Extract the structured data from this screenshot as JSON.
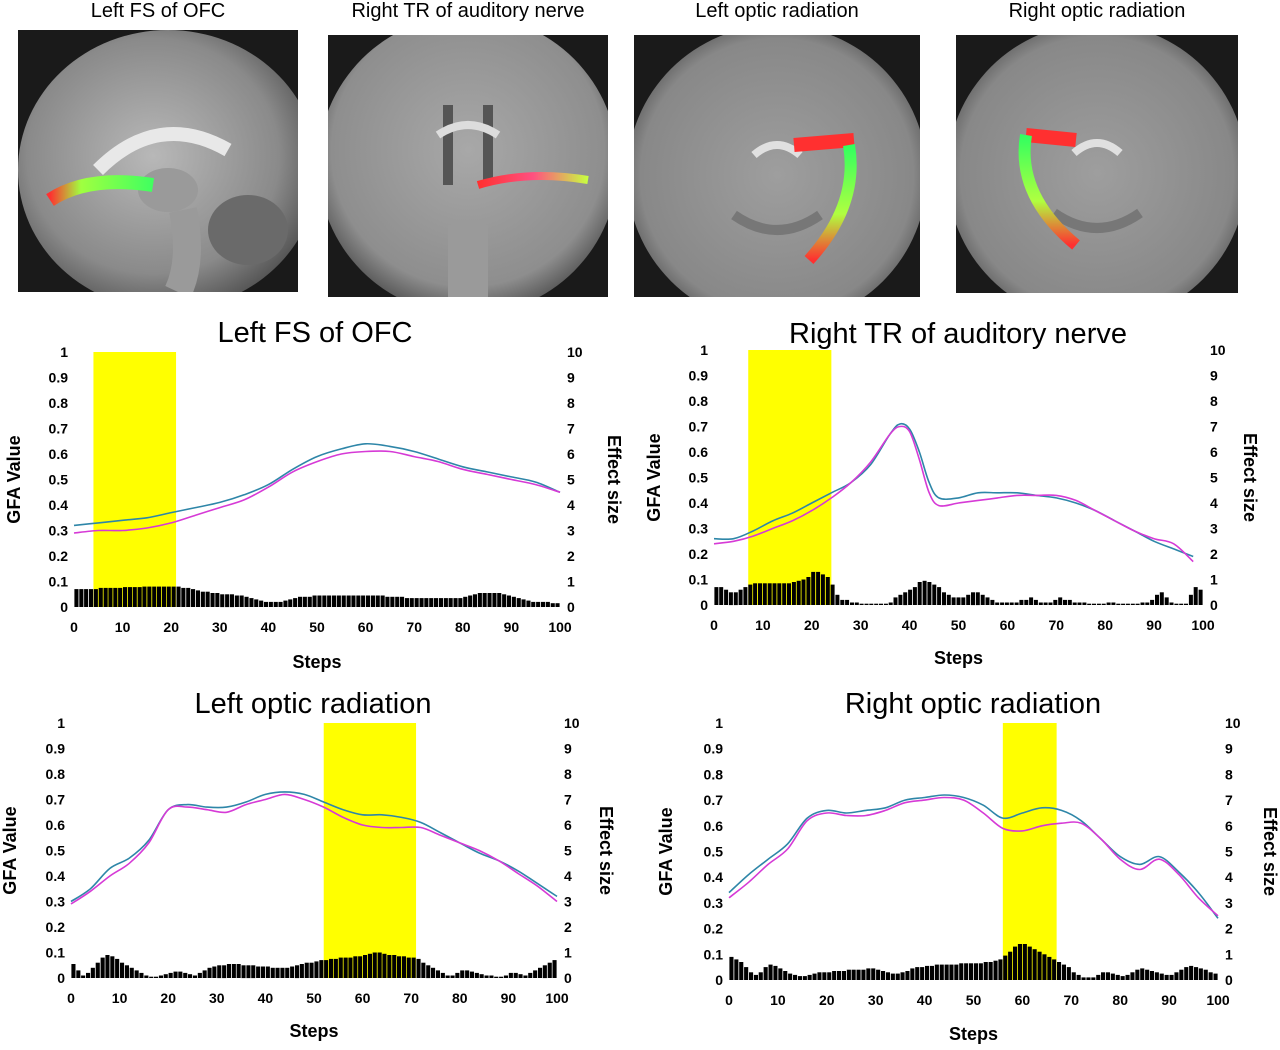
{
  "brain_images": [
    {
      "title": "Left FS of OFC"
    },
    {
      "title": "Right TR of auditory nerve"
    },
    {
      "title": "Left optic radiation"
    },
    {
      "title": "Right optic radiation"
    }
  ],
  "colors": {
    "highlight": "#ffff00",
    "line1": "#2e86a8",
    "line2": "#d63ad6",
    "bars": "#000000"
  },
  "chart_data": [
    {
      "type": "line",
      "title": "Left FS of OFC",
      "xlabel": "Steps",
      "ylabel": "GFA Value",
      "y2label": "Effect size",
      "xlim": [
        0,
        100
      ],
      "ylim": [
        0,
        1
      ],
      "y2lim": [
        0,
        10
      ],
      "xticks": [
        "0",
        "10",
        "20",
        "30",
        "40",
        "50",
        "60",
        "70",
        "80",
        "90",
        "100"
      ],
      "yticks": [
        "0",
        "0.1",
        "0.2",
        "0.3",
        "0.4",
        "0.5",
        "0.6",
        "0.7",
        "0.8",
        "0.9",
        "1"
      ],
      "y2ticks": [
        "0",
        "1",
        "2",
        "3",
        "4",
        "5",
        "6",
        "7",
        "8",
        "9",
        "10"
      ],
      "highlight": [
        4,
        21
      ],
      "series": [
        {
          "x": [
            0,
            5,
            10,
            15,
            20,
            25,
            30,
            35,
            40,
            45,
            50,
            55,
            60,
            65,
            70,
            75,
            80,
            85,
            90,
            95,
            100
          ],
          "values": [
            0.32,
            0.33,
            0.34,
            0.35,
            0.37,
            0.39,
            0.41,
            0.44,
            0.48,
            0.54,
            0.59,
            0.62,
            0.64,
            0.63,
            0.61,
            0.58,
            0.55,
            0.53,
            0.51,
            0.49,
            0.45
          ]
        },
        {
          "x": [
            0,
            5,
            10,
            15,
            20,
            25,
            30,
            35,
            40,
            45,
            50,
            55,
            60,
            65,
            70,
            75,
            80,
            85,
            90,
            95,
            100
          ],
          "values": [
            0.29,
            0.3,
            0.3,
            0.31,
            0.33,
            0.36,
            0.39,
            0.42,
            0.47,
            0.53,
            0.57,
            0.6,
            0.61,
            0.61,
            0.59,
            0.57,
            0.54,
            0.52,
            0.5,
            0.48,
            0.45
          ]
        }
      ],
      "effect_size": [
        0.7,
        0.7,
        0.7,
        0.7,
        0.7,
        0.75,
        0.75,
        0.75,
        0.75,
        0.75,
        0.78,
        0.78,
        0.78,
        0.78,
        0.8,
        0.8,
        0.8,
        0.8,
        0.8,
        0.8,
        0.8,
        0.8,
        0.75,
        0.75,
        0.7,
        0.65,
        0.6,
        0.6,
        0.55,
        0.55,
        0.5,
        0.5,
        0.5,
        0.45,
        0.45,
        0.4,
        0.35,
        0.3,
        0.25,
        0.2,
        0.2,
        0.2,
        0.2,
        0.25,
        0.3,
        0.35,
        0.4,
        0.4,
        0.4,
        0.45,
        0.45,
        0.45,
        0.45,
        0.45,
        0.45,
        0.45,
        0.45,
        0.45,
        0.45,
        0.45,
        0.45,
        0.45,
        0.45,
        0.45,
        0.4,
        0.4,
        0.4,
        0.4,
        0.35,
        0.35,
        0.35,
        0.35,
        0.35,
        0.35,
        0.35,
        0.35,
        0.35,
        0.35,
        0.35,
        0.35,
        0.4,
        0.45,
        0.5,
        0.55,
        0.55,
        0.55,
        0.55,
        0.55,
        0.5,
        0.45,
        0.4,
        0.35,
        0.3,
        0.25,
        0.2,
        0.2,
        0.2,
        0.2,
        0.15,
        0.15
      ]
    },
    {
      "type": "line",
      "title": "Right TR of auditory nerve",
      "xlabel": "Steps",
      "ylabel": "GFA Value",
      "y2label": "Effect size",
      "xlim": [
        0,
        100
      ],
      "ylim": [
        0,
        1
      ],
      "y2lim": [
        0,
        10
      ],
      "xticks": [
        "0",
        "10",
        "20",
        "30",
        "40",
        "50",
        "60",
        "70",
        "80",
        "90",
        "100"
      ],
      "yticks": [
        "0",
        "0.1",
        "0.2",
        "0.3",
        "0.4",
        "0.5",
        "0.6",
        "0.7",
        "0.8",
        "0.9",
        "1"
      ],
      "y2ticks": [
        "0",
        "1",
        "2",
        "3",
        "4",
        "5",
        "6",
        "7",
        "8",
        "9",
        "10"
      ],
      "highlight": [
        7,
        24
      ],
      "series": [
        {
          "x": [
            0,
            4,
            8,
            12,
            16,
            20,
            24,
            28,
            32,
            36,
            38,
            40,
            42,
            44,
            46,
            50,
            54,
            58,
            62,
            66,
            70,
            74,
            78,
            82,
            86,
            90,
            94,
            98
          ],
          "values": [
            0.26,
            0.26,
            0.29,
            0.33,
            0.36,
            0.4,
            0.44,
            0.48,
            0.55,
            0.67,
            0.71,
            0.69,
            0.6,
            0.48,
            0.42,
            0.42,
            0.44,
            0.44,
            0.44,
            0.43,
            0.42,
            0.4,
            0.37,
            0.33,
            0.29,
            0.25,
            0.22,
            0.19
          ]
        },
        {
          "x": [
            0,
            4,
            8,
            12,
            16,
            20,
            24,
            28,
            32,
            36,
            38,
            40,
            42,
            44,
            46,
            50,
            54,
            58,
            62,
            66,
            70,
            74,
            78,
            82,
            86,
            90,
            94,
            98
          ],
          "values": [
            0.24,
            0.25,
            0.27,
            0.3,
            0.33,
            0.37,
            0.42,
            0.48,
            0.56,
            0.67,
            0.7,
            0.68,
            0.57,
            0.44,
            0.39,
            0.4,
            0.41,
            0.42,
            0.43,
            0.43,
            0.43,
            0.41,
            0.37,
            0.33,
            0.29,
            0.26,
            0.24,
            0.17
          ]
        }
      ],
      "effect_size": [
        0.7,
        0.7,
        0.6,
        0.5,
        0.5,
        0.6,
        0.7,
        0.8,
        0.85,
        0.85,
        0.85,
        0.85,
        0.85,
        0.85,
        0.85,
        0.85,
        0.9,
        0.95,
        1.0,
        1.1,
        1.3,
        1.3,
        1.2,
        1.1,
        0.8,
        0.4,
        0.2,
        0.2,
        0.1,
        0.1,
        0.05,
        0.05,
        0.05,
        0.05,
        0.05,
        0.05,
        0.1,
        0.3,
        0.4,
        0.5,
        0.6,
        0.7,
        0.9,
        0.95,
        0.9,
        0.8,
        0.7,
        0.5,
        0.4,
        0.3,
        0.3,
        0.3,
        0.4,
        0.5,
        0.5,
        0.4,
        0.3,
        0.2,
        0.1,
        0.1,
        0.1,
        0.1,
        0.1,
        0.2,
        0.2,
        0.3,
        0.2,
        0.1,
        0.1,
        0.1,
        0.2,
        0.3,
        0.2,
        0.2,
        0.1,
        0.1,
        0.1,
        0.05,
        0.05,
        0.05,
        0.05,
        0.1,
        0.1,
        0.05,
        0.05,
        0.05,
        0.05,
        0.05,
        0.1,
        0.1,
        0.2,
        0.4,
        0.5,
        0.3,
        0.1,
        0.05,
        0.05,
        0.05,
        0.4,
        0.7,
        0.6
      ]
    },
    {
      "type": "line",
      "title": "Left optic radiation",
      "xlabel": "Steps",
      "ylabel": "GFA Value",
      "y2label": "Effect size",
      "xlim": [
        0,
        100
      ],
      "ylim": [
        0,
        1
      ],
      "y2lim": [
        0,
        10
      ],
      "xticks": [
        "0",
        "10",
        "20",
        "30",
        "40",
        "50",
        "60",
        "70",
        "80",
        "90",
        "100"
      ],
      "yticks": [
        "0",
        "0.1",
        "0.2",
        "0.3",
        "0.4",
        "0.5",
        "0.6",
        "0.7",
        "0.8",
        "0.9",
        "1"
      ],
      "y2ticks": [
        "0",
        "1",
        "2",
        "3",
        "4",
        "5",
        "6",
        "7",
        "8",
        "9",
        "10"
      ],
      "highlight": [
        52,
        71
      ],
      "series": [
        {
          "x": [
            0,
            4,
            8,
            12,
            16,
            20,
            24,
            28,
            32,
            36,
            40,
            44,
            48,
            52,
            56,
            60,
            64,
            68,
            72,
            76,
            80,
            84,
            88,
            92,
            96,
            100
          ],
          "values": [
            0.3,
            0.35,
            0.43,
            0.47,
            0.54,
            0.66,
            0.68,
            0.67,
            0.67,
            0.69,
            0.72,
            0.73,
            0.72,
            0.69,
            0.66,
            0.64,
            0.64,
            0.63,
            0.61,
            0.57,
            0.53,
            0.49,
            0.46,
            0.42,
            0.37,
            0.32
          ]
        },
        {
          "x": [
            0,
            4,
            8,
            12,
            16,
            20,
            24,
            28,
            32,
            36,
            40,
            44,
            48,
            52,
            56,
            60,
            64,
            68,
            72,
            76,
            80,
            84,
            88,
            92,
            96,
            100
          ],
          "values": [
            0.29,
            0.34,
            0.4,
            0.45,
            0.53,
            0.66,
            0.67,
            0.66,
            0.65,
            0.68,
            0.7,
            0.72,
            0.7,
            0.67,
            0.63,
            0.6,
            0.59,
            0.59,
            0.59,
            0.56,
            0.53,
            0.5,
            0.46,
            0.41,
            0.36,
            0.3
          ]
        }
      ],
      "effect_size": [
        0.55,
        0.3,
        0.1,
        0.2,
        0.4,
        0.6,
        0.8,
        0.9,
        0.85,
        0.75,
        0.6,
        0.5,
        0.4,
        0.3,
        0.2,
        0.1,
        0.05,
        0.05,
        0.1,
        0.15,
        0.2,
        0.25,
        0.25,
        0.2,
        0.15,
        0.1,
        0.2,
        0.3,
        0.4,
        0.45,
        0.5,
        0.5,
        0.55,
        0.55,
        0.55,
        0.5,
        0.5,
        0.5,
        0.45,
        0.45,
        0.45,
        0.4,
        0.4,
        0.4,
        0.4,
        0.45,
        0.5,
        0.55,
        0.6,
        0.6,
        0.65,
        0.7,
        0.7,
        0.75,
        0.75,
        0.8,
        0.8,
        0.8,
        0.85,
        0.85,
        0.9,
        0.95,
        1.0,
        1.0,
        0.95,
        0.9,
        0.9,
        0.85,
        0.85,
        0.8,
        0.8,
        0.75,
        0.6,
        0.5,
        0.4,
        0.3,
        0.2,
        0.1,
        0.1,
        0.2,
        0.3,
        0.3,
        0.25,
        0.2,
        0.15,
        0.1,
        0.1,
        0.05,
        0.05,
        0.1,
        0.2,
        0.2,
        0.15,
        0.1,
        0.2,
        0.3,
        0.4,
        0.5,
        0.6,
        0.7
      ]
    },
    {
      "type": "line",
      "title": "Right optic radiation",
      "xlabel": "Steps",
      "ylabel": "GFA Value",
      "y2label": "Effect size",
      "xlim": [
        0,
        100
      ],
      "ylim": [
        0,
        1
      ],
      "y2lim": [
        0,
        10
      ],
      "xticks": [
        "0",
        "10",
        "20",
        "30",
        "40",
        "50",
        "60",
        "70",
        "80",
        "90",
        "100"
      ],
      "yticks": [
        "0",
        "0.1",
        "0.2",
        "0.3",
        "0.4",
        "0.5",
        "0.6",
        "0.7",
        "0.8",
        "0.9",
        "1"
      ],
      "y2ticks": [
        "0",
        "1",
        "2",
        "3",
        "4",
        "5",
        "6",
        "7",
        "8",
        "9",
        "10"
      ],
      "highlight": [
        56,
        67
      ],
      "series": [
        {
          "x": [
            0,
            4,
            8,
            12,
            16,
            20,
            24,
            28,
            32,
            36,
            40,
            44,
            48,
            52,
            56,
            60,
            64,
            68,
            72,
            76,
            80,
            84,
            88,
            92,
            96,
            100
          ],
          "values": [
            0.34,
            0.41,
            0.47,
            0.53,
            0.63,
            0.66,
            0.65,
            0.66,
            0.67,
            0.7,
            0.71,
            0.72,
            0.71,
            0.68,
            0.63,
            0.65,
            0.67,
            0.66,
            0.62,
            0.55,
            0.48,
            0.45,
            0.48,
            0.42,
            0.34,
            0.24
          ]
        },
        {
          "x": [
            0,
            4,
            8,
            12,
            16,
            20,
            24,
            28,
            32,
            36,
            40,
            44,
            48,
            52,
            56,
            60,
            64,
            68,
            72,
            76,
            80,
            84,
            88,
            92,
            96,
            100
          ],
          "values": [
            0.32,
            0.38,
            0.45,
            0.51,
            0.62,
            0.65,
            0.64,
            0.64,
            0.66,
            0.69,
            0.7,
            0.71,
            0.7,
            0.65,
            0.59,
            0.58,
            0.6,
            0.61,
            0.61,
            0.55,
            0.47,
            0.43,
            0.47,
            0.41,
            0.32,
            0.25
          ]
        }
      ],
      "effect_size": [
        0.9,
        0.8,
        0.7,
        0.5,
        0.3,
        0.2,
        0.3,
        0.5,
        0.6,
        0.55,
        0.45,
        0.35,
        0.25,
        0.2,
        0.15,
        0.15,
        0.2,
        0.25,
        0.3,
        0.3,
        0.3,
        0.35,
        0.35,
        0.35,
        0.4,
        0.4,
        0.4,
        0.4,
        0.45,
        0.45,
        0.4,
        0.35,
        0.3,
        0.25,
        0.25,
        0.3,
        0.35,
        0.45,
        0.5,
        0.5,
        0.55,
        0.55,
        0.6,
        0.6,
        0.6,
        0.6,
        0.6,
        0.65,
        0.65,
        0.65,
        0.65,
        0.65,
        0.7,
        0.7,
        0.75,
        0.8,
        0.95,
        1.1,
        1.3,
        1.4,
        1.4,
        1.3,
        1.2,
        1.1,
        1.0,
        0.9,
        0.8,
        0.7,
        0.6,
        0.5,
        0.3,
        0.2,
        0.1,
        0.1,
        0.1,
        0.2,
        0.3,
        0.3,
        0.25,
        0.2,
        0.15,
        0.2,
        0.3,
        0.4,
        0.45,
        0.4,
        0.35,
        0.3,
        0.25,
        0.2,
        0.2,
        0.3,
        0.4,
        0.5,
        0.55,
        0.5,
        0.45,
        0.4,
        0.3,
        0.25
      ]
    }
  ]
}
